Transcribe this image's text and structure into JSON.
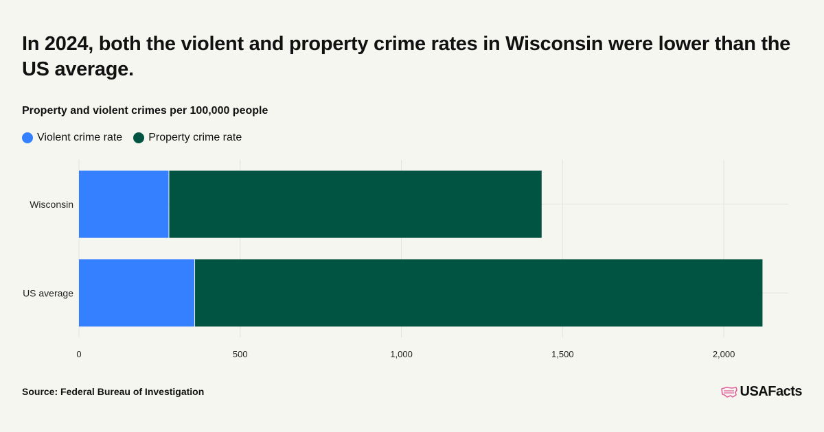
{
  "header": {
    "title": "In 2024, both the violent and property crime rates in Wisconsin were lower than the US average.",
    "subtitle": "Property and violent crimes per 100,000 people"
  },
  "legend": [
    {
      "label": "Violent crime rate",
      "color": "#3580ff"
    },
    {
      "label": "Property crime rate",
      "color": "#015442"
    }
  ],
  "chart_data": {
    "type": "bar",
    "orientation": "horizontal",
    "stacked": true,
    "categories": [
      "Wisconsin",
      "US average"
    ],
    "series": [
      {
        "name": "Violent crime rate",
        "color": "#3580ff",
        "values": [
          280,
          360
        ]
      },
      {
        "name": "Property crime rate",
        "color": "#015442",
        "values": [
          1155,
          1760
        ]
      }
    ],
    "xlim": [
      0,
      2200
    ],
    "xticks": [
      0,
      500,
      1000,
      1500,
      2000
    ],
    "xtick_labels": [
      "0",
      "500",
      "1,000",
      "1,500",
      "2,000"
    ],
    "grid": true,
    "legend_position": "top-left"
  },
  "footer": {
    "source": "Source: Federal Bureau of Investigation",
    "logo_text": "USAFacts",
    "logo_icon": "us-map-icon",
    "logo_color": "#e0609a"
  }
}
